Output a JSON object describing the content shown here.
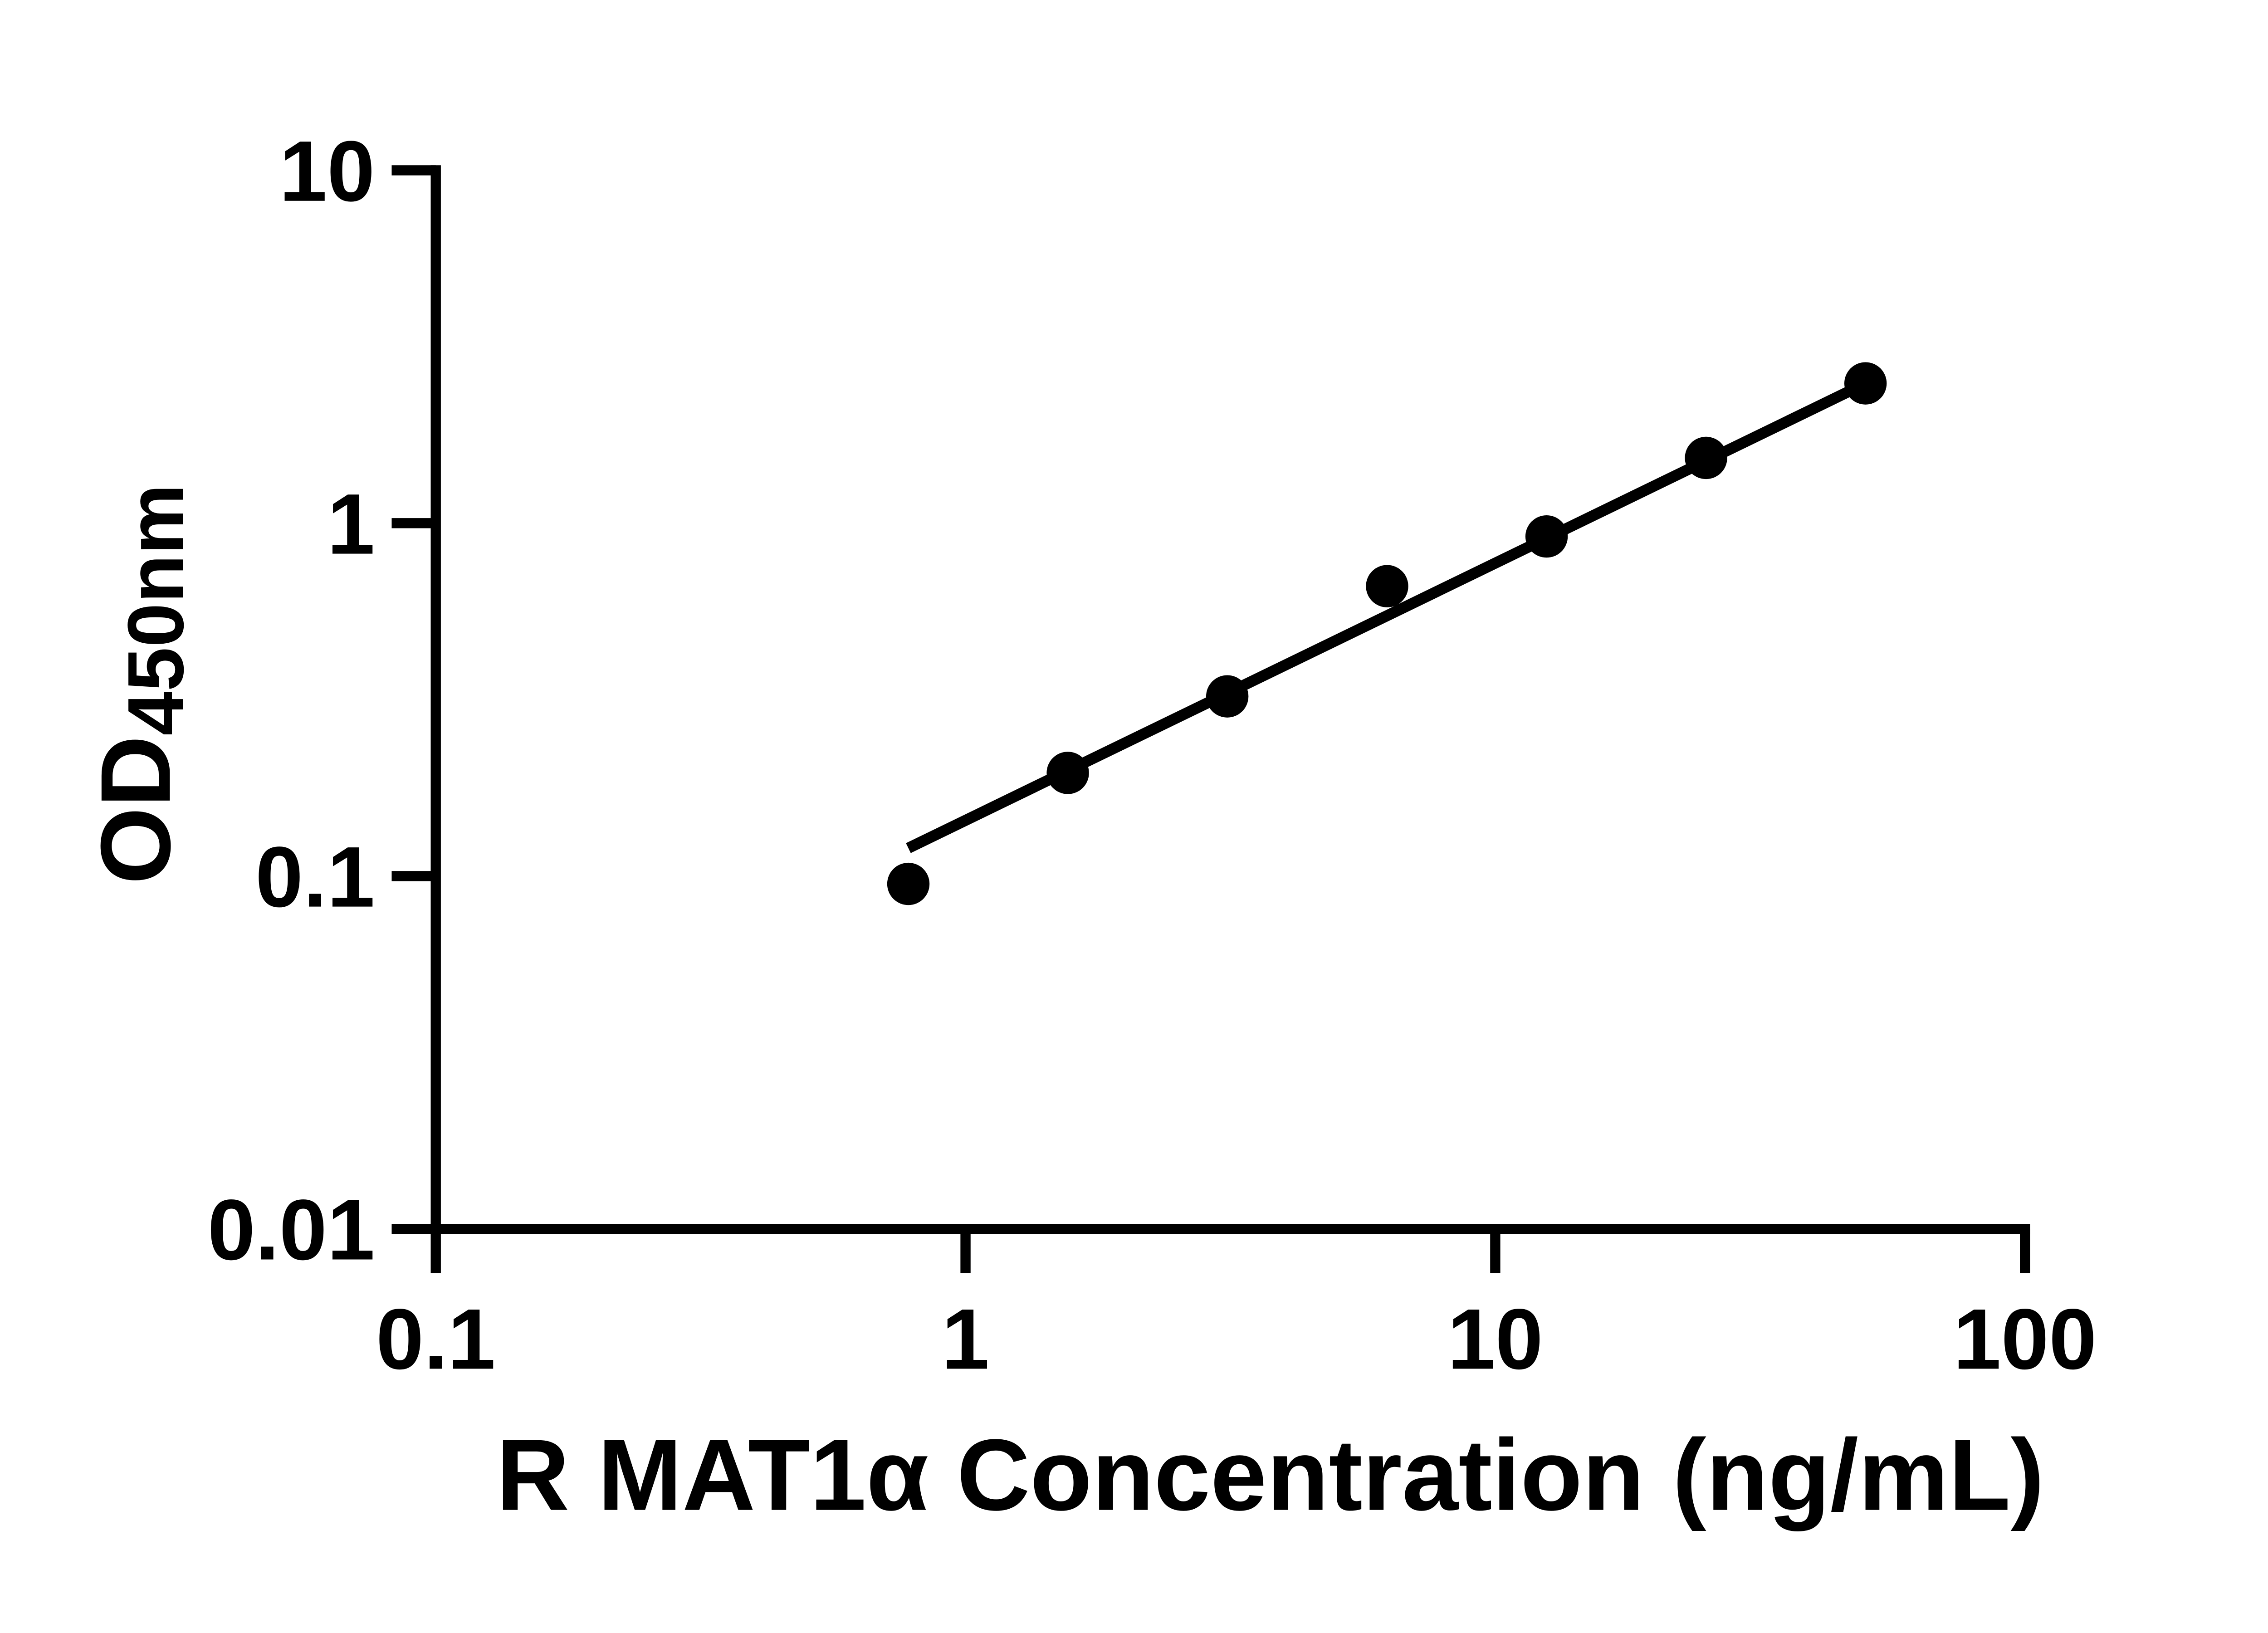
{
  "figure": {
    "background": "#ffffff",
    "ink": "#000000"
  },
  "chart_data": {
    "type": "scatter",
    "title": "",
    "xlabel": "R MAT1α Concentration (ng/mL)",
    "ylabel": {
      "main": "OD",
      "sub": "450nm"
    },
    "xscale": "log",
    "yscale": "log",
    "xlim": [
      0.1,
      100
    ],
    "ylim": [
      0.01,
      10
    ],
    "grid": false,
    "legend": false,
    "x_ticks": [
      {
        "v": 0.1,
        "label": "0.1"
      },
      {
        "v": 1,
        "label": "1"
      },
      {
        "v": 10,
        "label": "10"
      },
      {
        "v": 100,
        "label": "100"
      }
    ],
    "y_ticks": [
      {
        "v": 10,
        "label": "10"
      },
      {
        "v": 1,
        "label": "1"
      },
      {
        "v": 0.1,
        "label": "0.1"
      },
      {
        "v": 0.01,
        "label": "0.01"
      }
    ],
    "series": [
      {
        "marker": "filled-circle",
        "color": "#000000",
        "points": [
          {
            "x": 0.78,
            "y": 0.095
          },
          {
            "x": 1.56,
            "y": 0.196
          },
          {
            "x": 3.12,
            "y": 0.323
          },
          {
            "x": 6.25,
            "y": 0.663
          },
          {
            "x": 12.5,
            "y": 0.917
          },
          {
            "x": 25,
            "y": 1.531
          },
          {
            "x": 50,
            "y": 2.49
          }
        ]
      }
    ],
    "trend_line": {
      "color": "#000000",
      "from": {
        "x": 0.78,
        "y": 0.12
      },
      "to": {
        "x": 50,
        "y": 2.49
      }
    }
  }
}
